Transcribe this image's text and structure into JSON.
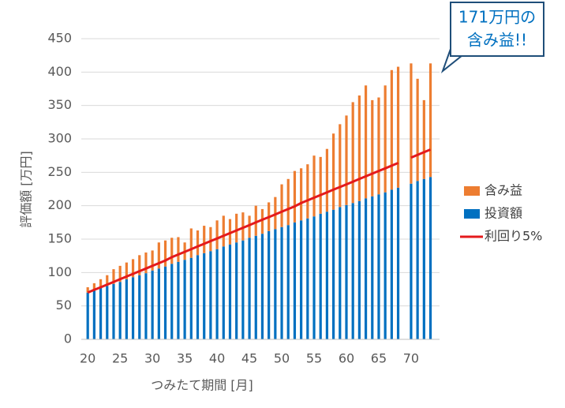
{
  "chart_data": {
    "type": "bar",
    "stacked": true,
    "x": [
      20,
      21,
      22,
      23,
      24,
      25,
      26,
      27,
      28,
      29,
      30,
      31,
      32,
      33,
      34,
      35,
      36,
      37,
      38,
      39,
      40,
      41,
      42,
      43,
      44,
      45,
      46,
      47,
      48,
      49,
      50,
      51,
      52,
      53,
      54,
      55,
      56,
      57,
      58,
      59,
      60,
      61,
      62,
      63,
      64,
      65,
      66,
      67,
      68,
      69,
      70,
      71,
      72,
      73
    ],
    "series": [
      {
        "name": "含み益",
        "color": "#ed7d31",
        "values": [
          8,
          11,
          13,
          16,
          22,
          24,
          25,
          27,
          30,
          31,
          30,
          39,
          39,
          39,
          37,
          26,
          44,
          37,
          41,
          36,
          43,
          46,
          38,
          43,
          42,
          33,
          45,
          37,
          43,
          48,
          64,
          69,
          77,
          78,
          81,
          91,
          85,
          94,
          114,
          124,
          134,
          151,
          158,
          169,
          144,
          145,
          160,
          179,
          181,
          null,
          180,
          153,
          118,
          170
        ]
      },
      {
        "name": "投資額",
        "color": "#0070c0",
        "values": [
          70,
          73,
          77,
          80,
          83,
          86,
          90,
          93,
          96,
          99,
          103,
          106,
          109,
          113,
          116,
          119,
          122,
          126,
          129,
          132,
          135,
          139,
          142,
          145,
          148,
          152,
          155,
          158,
          162,
          165,
          168,
          171,
          175,
          178,
          181,
          184,
          188,
          191,
          194,
          198,
          201,
          204,
          207,
          211,
          214,
          217,
          220,
          224,
          227,
          null,
          233,
          237,
          240,
          243
        ]
      },
      {
        "name": "利回り5%",
        "type": "line",
        "color": "#e41a1c",
        "values": [
          70,
          74,
          78,
          82,
          86,
          90,
          94,
          98,
          102,
          106,
          110,
          114,
          118,
          123,
          127,
          131,
          135,
          139,
          143,
          147,
          151,
          155,
          159,
          163,
          167,
          171,
          175,
          179,
          183,
          187,
          191,
          195,
          199,
          204,
          208,
          212,
          216,
          220,
          224,
          228,
          232,
          236,
          240,
          244,
          248,
          252,
          256,
          260,
          264,
          null,
          272,
          276,
          280,
          284
        ]
      }
    ],
    "xlabel": "つみたて期間 [月]",
    "ylabel": "評価額 [万円]",
    "xlim": [
      19,
      74.4
    ],
    "xticks": [
      20,
      25,
      30,
      35,
      40,
      45,
      50,
      55,
      60,
      65,
      70
    ],
    "ylim": [
      0,
      450
    ],
    "yticks": [
      0,
      50,
      100,
      150,
      200,
      250,
      300,
      350,
      400,
      450
    ],
    "grid": true,
    "legend": "right",
    "annotation": [
      "171万円の",
      "含み益!!"
    ]
  }
}
